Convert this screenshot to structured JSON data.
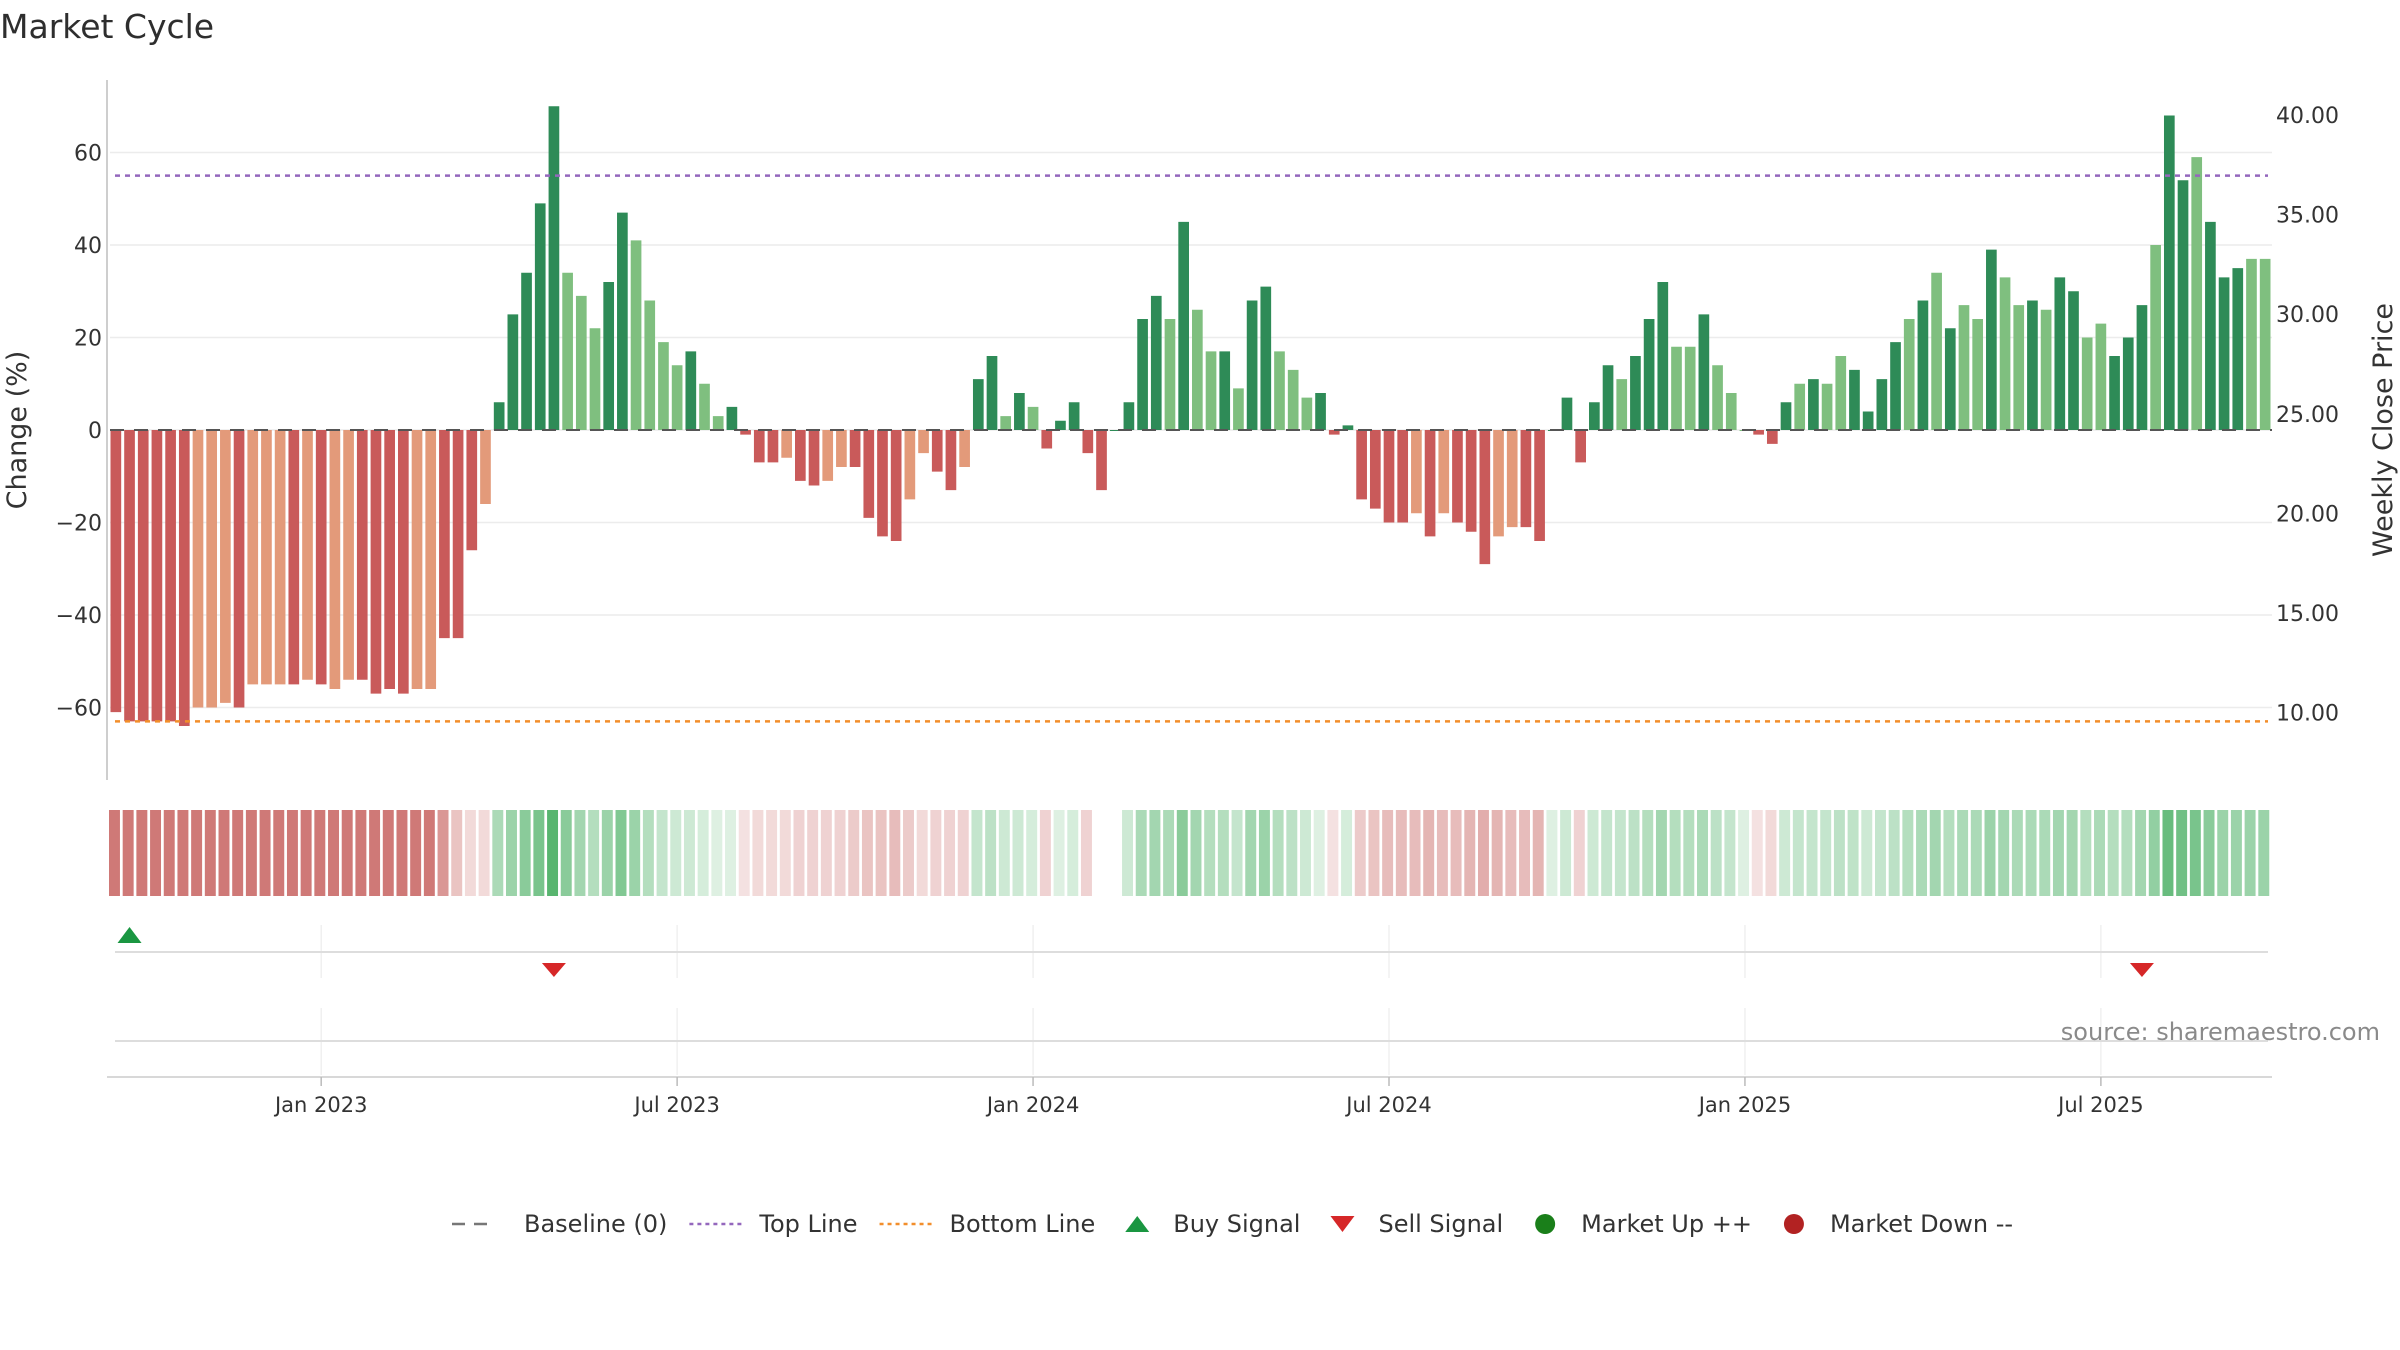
{
  "chart_data": {
    "type": "bar",
    "title": "Market Cycle",
    "source": "source: sharemaestro.com",
    "ylabel_left": "Change (%)",
    "ylabel_right": "Weekly Close Price",
    "y_ticks_left": [
      "60",
      "40",
      "20",
      "0",
      "−20",
      "−40",
      "−60"
    ],
    "y_tick_values_left": [
      60,
      40,
      20,
      0,
      -20,
      -40,
      -60
    ],
    "y_ticks_right": [
      "40.00",
      "35.00",
      "30.00",
      "25.00",
      "20.00",
      "15.00",
      "10.00"
    ],
    "ylim_left": [
      -75,
      75
    ],
    "x_ticks": [
      {
        "label": "Jan 2023",
        "index": 15
      },
      {
        "label": "Jul 2023",
        "index": 41
      },
      {
        "label": "Jan 2024",
        "index": 67
      },
      {
        "label": "Jul 2024",
        "index": 93
      },
      {
        "label": "Jan 2025",
        "index": 119
      },
      {
        "label": "Jul 2025",
        "index": 145
      }
    ],
    "top_line": 55,
    "bottom_line": -63,
    "colors": {
      "strong_up": "#2e8b57",
      "weak_up": "#7fbf7f",
      "strong_down": "#c95a5a",
      "weak_down": "#e39a7a",
      "top_line": "#9467bd",
      "bottom_line": "#f28e2b",
      "buy": "#1a9641",
      "sell": "#d62728",
      "market_up": "#1a7f1a",
      "market_down": "#b22222"
    },
    "values": [
      -61,
      -63,
      -63,
      -63,
      -63,
      -64,
      -60,
      -60,
      -59,
      -60,
      -55,
      -55,
      -55,
      -55,
      -54,
      -55,
      -56,
      -54,
      -54,
      -57,
      -56,
      -57,
      -56,
      -56,
      -45,
      -45,
      -26,
      -16,
      6,
      25,
      34,
      49,
      70,
      34,
      29,
      22,
      32,
      47,
      41,
      28,
      19,
      14,
      17,
      10,
      3,
      5,
      -1,
      -7,
      -7,
      -6,
      -11,
      -12,
      -11,
      -8,
      -8,
      -19,
      -23,
      -24,
      -15,
      -5,
      -9,
      -13,
      -8,
      11,
      16,
      3,
      8,
      5,
      -4,
      2,
      6,
      -5,
      -13,
      0,
      6,
      24,
      29,
      24,
      45,
      26,
      17,
      17,
      9,
      28,
      31,
      17,
      13,
      7,
      8,
      -1,
      1,
      -15,
      -17,
      -20,
      -20,
      -18,
      -23,
      -18,
      -20,
      -22,
      -29,
      -23,
      -21,
      -21,
      -24,
      0,
      7,
      -7,
      6,
      14,
      11,
      16,
      24,
      32,
      18,
      18,
      25,
      14,
      8,
      0,
      -1,
      -3,
      6,
      10,
      11,
      10,
      16,
      13,
      4,
      11,
      19,
      24,
      28,
      34,
      22,
      27,
      24,
      39,
      33,
      27,
      28,
      26,
      33,
      30,
      20,
      23,
      16,
      20,
      27,
      40,
      68,
      54,
      59,
      45,
      33,
      35,
      37,
      37
    ],
    "strength": [
      "s",
      "s",
      "s",
      "s",
      "s",
      "s",
      "w",
      "w",
      "w",
      "s",
      "w",
      "w",
      "w",
      "s",
      "w",
      "s",
      "w",
      "w",
      "s",
      "s",
      "s",
      "s",
      "w",
      "w",
      "s",
      "s",
      "s",
      "w",
      "s",
      "s",
      "s",
      "s",
      "s",
      "w",
      "w",
      "w",
      "s",
      "s",
      "w",
      "w",
      "w",
      "w",
      "s",
      "w",
      "w",
      "s",
      "s",
      "s",
      "s",
      "w",
      "s",
      "s",
      "w",
      "w",
      "s",
      "s",
      "s",
      "s",
      "w",
      "w",
      "s",
      "s",
      "w",
      "s",
      "s",
      "w",
      "s",
      "w",
      "s",
      "s",
      "s",
      "s",
      "s",
      "s",
      "s",
      "s",
      "s",
      "w",
      "s",
      "w",
      "w",
      "s",
      "w",
      "s",
      "s",
      "w",
      "w",
      "w",
      "s",
      "s",
      "s",
      "s",
      "s",
      "s",
      "s",
      "w",
      "s",
      "w",
      "s",
      "s",
      "s",
      "w",
      "w",
      "s",
      "s",
      "s",
      "s",
      "s",
      "s",
      "s",
      "w",
      "s",
      "s",
      "s",
      "w",
      "w",
      "s",
      "w",
      "w",
      "w",
      "s",
      "s",
      "s",
      "w",
      "s",
      "w",
      "w",
      "s",
      "s",
      "s",
      "s",
      "w",
      "s",
      "w",
      "s",
      "w",
      "w",
      "s",
      "w",
      "w",
      "s",
      "w",
      "s",
      "s",
      "w",
      "w",
      "s",
      "s",
      "s",
      "w",
      "s",
      "s",
      "w",
      "s",
      "s",
      "s"
    ],
    "heatmap_intensity": [
      0.9,
      0.9,
      0.9,
      0.9,
      0.9,
      0.9,
      0.9,
      0.9,
      0.9,
      0.9,
      0.9,
      0.9,
      0.9,
      0.9,
      0.9,
      0.9,
      0.9,
      0.9,
      0.9,
      0.9,
      0.9,
      0.9,
      0.9,
      0.9,
      0.7,
      0.4,
      0.25,
      0.25,
      0.5,
      0.6,
      0.7,
      0.8,
      1.0,
      0.7,
      0.55,
      0.45,
      0.6,
      0.75,
      0.6,
      0.45,
      0.35,
      0.3,
      0.3,
      0.25,
      0.2,
      0.2,
      0.2,
      0.25,
      0.25,
      0.25,
      0.3,
      0.3,
      0.3,
      0.3,
      0.35,
      0.4,
      0.4,
      0.45,
      0.35,
      0.25,
      0.3,
      0.3,
      0.3,
      0.35,
      0.4,
      0.3,
      0.3,
      0.25,
      0.3,
      0.2,
      0.25,
      0.3,
      0.0,
      0.0,
      0.3,
      0.5,
      0.55,
      0.5,
      0.7,
      0.55,
      0.45,
      0.45,
      0.35,
      0.55,
      0.6,
      0.45,
      0.4,
      0.3,
      0.2,
      0.2,
      0.25,
      0.35,
      0.4,
      0.45,
      0.45,
      0.45,
      0.5,
      0.45,
      0.45,
      0.5,
      0.55,
      0.5,
      0.45,
      0.45,
      0.5,
      0.2,
      0.3,
      0.3,
      0.3,
      0.35,
      0.35,
      0.4,
      0.45,
      0.55,
      0.45,
      0.45,
      0.5,
      0.4,
      0.35,
      0.2,
      0.2,
      0.25,
      0.3,
      0.35,
      0.35,
      0.35,
      0.4,
      0.38,
      0.3,
      0.35,
      0.4,
      0.45,
      0.5,
      0.55,
      0.45,
      0.5,
      0.5,
      0.6,
      0.55,
      0.5,
      0.5,
      0.5,
      0.55,
      0.55,
      0.45,
      0.5,
      0.45,
      0.45,
      0.55,
      0.65,
      0.9,
      0.85,
      0.8,
      0.7,
      0.6,
      0.6,
      0.6,
      0.6
    ],
    "buy_signals": [
      1
    ],
    "sell_signals": [
      32,
      148
    ],
    "legend": [
      {
        "key": "baseline",
        "label": "Baseline (0)"
      },
      {
        "key": "top",
        "label": "Top Line"
      },
      {
        "key": "bottom",
        "label": "Bottom Line"
      },
      {
        "key": "buy",
        "label": "Buy Signal"
      },
      {
        "key": "sell",
        "label": "Sell Signal"
      },
      {
        "key": "mup",
        "label": "Market Up ++"
      },
      {
        "key": "mdown",
        "label": "Market Down --"
      }
    ]
  }
}
